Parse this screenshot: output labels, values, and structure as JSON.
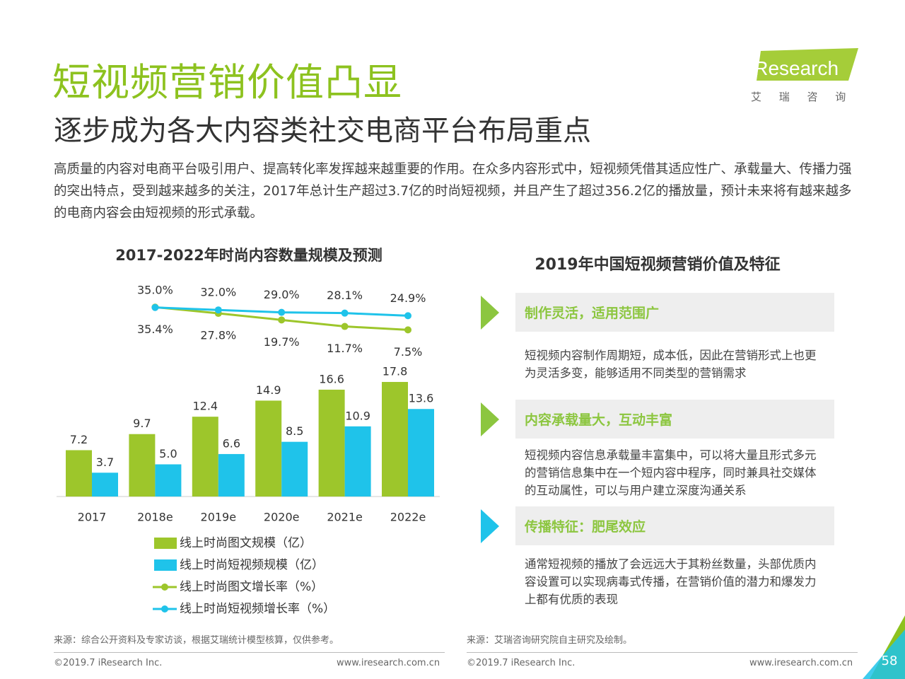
{
  "header": {
    "title": "短视频营销价值凸显",
    "subtitle": "逐步成为各大内容类社交电商平台布局重点"
  },
  "logo": {
    "brand": "iResearch",
    "tagline": "艾 瑞 咨 询"
  },
  "intro": "高质量的内容对电商平台吸引用户、提高转化率发挥越来越重要的作用。在众多内容形式中，短视频凭借其适应性广、承载量大、传播力强的突出特点，受到越来越多的关注，2017年总计生产超过3.7亿的时尚短视频，并且产生了超过356.2亿的播放量，预计未来将有越来越多的电商内容会由短视频的形式承载。",
  "chart_data": {
    "type": "bar",
    "title": "2017-2022年时尚内容数量规模及预测",
    "categories": [
      "2017",
      "2018e",
      "2019e",
      "2020e",
      "2021e",
      "2022e"
    ],
    "ylim": [
      0,
      20
    ],
    "y2lim": [
      0,
      40
    ],
    "series": [
      {
        "name": "线上时尚图文规模（亿）",
        "type": "bar",
        "color": "#9dc62b",
        "values": [
          7.2,
          9.7,
          12.4,
          14.9,
          16.6,
          17.8
        ]
      },
      {
        "name": "线上时尚短视频规模（亿）",
        "type": "bar",
        "color": "#1fc3ea",
        "values": [
          3.7,
          5.0,
          6.6,
          8.5,
          10.9,
          13.6
        ],
        "value_labels": [
          "3.7",
          "5.0",
          "6.6",
          "8.5",
          "10.9",
          "13.6"
        ]
      },
      {
        "name": "线上时尚图文增长率（%）",
        "type": "line",
        "axis": "y2",
        "color": "#9dc62b",
        "values": [
          null,
          35.4,
          27.8,
          19.7,
          11.7,
          7.5
        ],
        "value_labels": [
          null,
          "35.4%",
          "27.8%",
          "19.7%",
          "11.7%",
          "7.5%"
        ]
      },
      {
        "name": "线上时尚短视频增长率（%）",
        "type": "line",
        "axis": "y2",
        "color": "#1fc3ea",
        "values": [
          null,
          35.0,
          32.0,
          29.0,
          28.1,
          24.9
        ],
        "value_labels": [
          null,
          "35.0%",
          "32.0%",
          "29.0%",
          "28.1%",
          "24.9%"
        ]
      }
    ]
  },
  "panel": {
    "title": "2019年中国短视频营销价值及特征",
    "items": [
      {
        "heading": "制作灵活，适用范围广",
        "text": "短视频内容制作周期短，成本低，因此在营销形式上也更为灵活多变，能够适用不同类型的营销需求"
      },
      {
        "heading": "内容承载量大，互动丰富",
        "text": "短视频内容信息承载量丰富集中，可以将大量且形式多元的营销信息集中在一个短内容中程序，同时兼具社交媒体的互动属性，可以与用户建立深度沟通关系"
      },
      {
        "heading": "传播特征：肥尾效应",
        "text": "通常短视频的播放了会远远大于其粉丝数量，头部优质内容设置可以实现病毒式传播，在营销价值的潜力和爆发力上都有优质的表现"
      }
    ]
  },
  "footer": {
    "left": {
      "source": "来源：综合公开资料及专家访谈，根据艾瑞统计模型核算，仅供参考。",
      "copyright": "©2019.7 iResearch Inc.",
      "website": "www.iresearch.com.cn"
    },
    "right": {
      "source": "来源：艾瑞咨询研究院自主研究及绘制。",
      "copyright": "©2019.7 iResearch Inc.",
      "website": "www.iresearch.com.cn"
    },
    "page": 58
  }
}
